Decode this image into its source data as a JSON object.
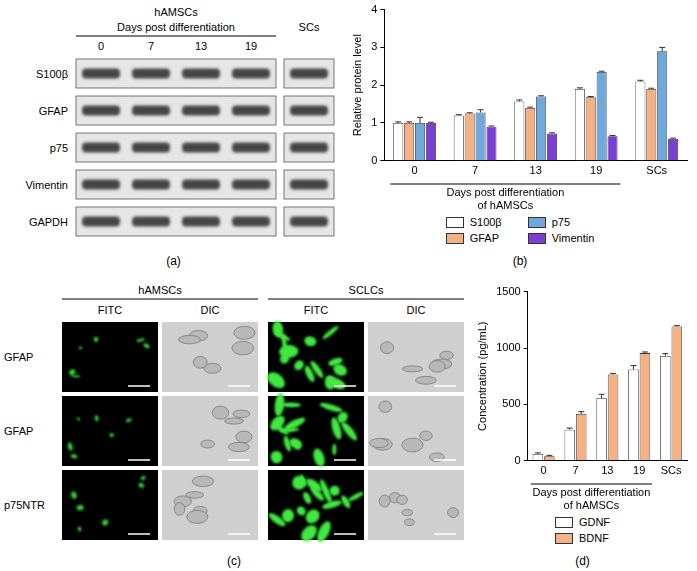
{
  "blot": {
    "panel_label": "(a)",
    "group": "hAMSCs",
    "subtitle": "Days post differentiation",
    "lanes": [
      "0",
      "7",
      "13",
      "19"
    ],
    "extra_lane": "SCs",
    "rows": [
      "S100β",
      "GFAP",
      "p75",
      "Vimentin",
      "GAPDH"
    ]
  },
  "chart_data": [
    {
      "type": "bar",
      "panel_label": "(b)",
      "y_label": "Relative protein level",
      "categories": [
        "0",
        "7",
        "13",
        "19",
        "SCs"
      ],
      "x_group_label": {
        "lines": [
          "Days post differentiation",
          "of hAMSCs"
        ],
        "categories": [
          "0",
          "7",
          "13",
          "19"
        ]
      },
      "series": [
        {
          "name": "S100β",
          "color": "#ffffff",
          "values": [
            1.0,
            1.2,
            1.57,
            1.9,
            2.1
          ],
          "errors": [
            0.03,
            0.02,
            0.04,
            0.03,
            0.03
          ]
        },
        {
          "name": "GFAP",
          "color": "#f4b183",
          "values": [
            1.0,
            1.25,
            1.4,
            1.68,
            1.9
          ],
          "errors": [
            0.03,
            0.02,
            0.02,
            0.02,
            0.02
          ]
        },
        {
          "name": "p75",
          "color": "#6fa8dc",
          "values": [
            1.0,
            1.28,
            1.7,
            2.35,
            2.9
          ],
          "errors": [
            0.15,
            0.07,
            0.02,
            0.02,
            0.1
          ]
        },
        {
          "name": "Vimentin",
          "color": "#7b3fd6",
          "values": [
            1.0,
            0.9,
            0.72,
            0.65,
            0.58
          ],
          "errors": [
            0.02,
            0.02,
            0.02,
            0.02,
            0.02
          ]
        }
      ],
      "ylim": [
        0,
        4
      ],
      "yticks": [
        0,
        1,
        2,
        3,
        4
      ],
      "grid": false,
      "legend": "bottom"
    },
    {
      "type": "bar",
      "panel_label": "(d)",
      "y_label": "Concentration (pg/mL)",
      "categories": [
        "0",
        "7",
        "13",
        "19",
        "SCs"
      ],
      "x_group_label": {
        "lines": [
          "Days post differentiation",
          "of hAMSCs"
        ],
        "categories": [
          "0",
          "7",
          "13",
          "19"
        ]
      },
      "series": [
        {
          "name": "GDNF",
          "color": "#ffffff",
          "values": [
            60,
            275,
            555,
            810,
            930
          ],
          "errors": [
            10,
            15,
            35,
            35,
            20
          ]
        },
        {
          "name": "BDNF",
          "color": "#f4b183",
          "values": [
            40,
            415,
            765,
            955,
            1190
          ],
          "errors": [
            8,
            20,
            10,
            10,
            8
          ]
        }
      ],
      "ylim": [
        0,
        1500
      ],
      "yticks": [
        0,
        500,
        1000,
        1500
      ],
      "grid": false,
      "legend": "bottom"
    }
  ],
  "microscopy": {
    "panel_label": "(c)",
    "groups": [
      {
        "name": "hAMSCs",
        "channels": [
          "FITC",
          "DIC"
        ]
      },
      {
        "name": "SCLCs",
        "channels": [
          "FITC",
          "DIC"
        ]
      }
    ],
    "rows": [
      "GFAP",
      "GFAP",
      "p75NTR"
    ]
  }
}
